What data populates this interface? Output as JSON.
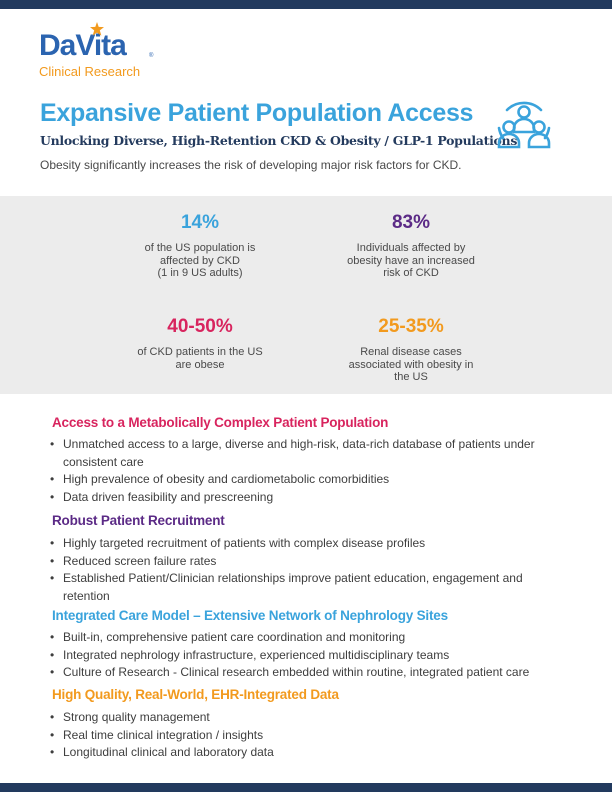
{
  "logo": {
    "brand": "DaVita",
    "reg_mark": "®",
    "subtitle": "Clinical Research"
  },
  "header": {
    "title": "Expansive Patient Population Access",
    "subtitle": "Unlocking Diverse, High-Retention CKD & Obesity / GLP-1 Populations",
    "intro": "Obesity significantly increases the risk of developing major risk factors for CKD."
  },
  "stats": [
    {
      "value": "14%",
      "lines": [
        "of the US population is",
        "affected by CKD",
        "(1 in 9 US adults)"
      ]
    },
    {
      "value": "83%",
      "lines": [
        "Individuals affected by",
        "obesity have an increased",
        "risk of CKD"
      ]
    },
    {
      "value": "40-50%",
      "lines": [
        "of CKD patients in the US",
        "are obese"
      ]
    },
    {
      "value": "25-35%",
      "lines": [
        "Renal disease cases",
        "associated with obesity in",
        "the US"
      ]
    }
  ],
  "sections": [
    {
      "heading": "Access to a Metabolically Complex Patient Population",
      "bullets": [
        [
          "Unmatched access to a large, diverse and high-risk, data-rich database of patients under",
          "consistent care"
        ],
        [
          "High prevalence of obesity and cardiometabolic comorbidities"
        ],
        [
          "Data driven feasibility and prescreening"
        ]
      ]
    },
    {
      "heading": "Robust Patient Recruitment",
      "bullets": [
        [
          "Highly targeted recruitment of patients with complex disease profiles"
        ],
        [
          "Reduced screen failure rates"
        ],
        [
          "Established Patient/Clinician relationships improve patient education, engagement and",
          "retention"
        ]
      ]
    },
    {
      "heading": "Integrated Care Model – Extensive Network of Nephrology Sites",
      "bullets": [
        [
          "Built-in, comprehensive patient care coordination and monitoring"
        ],
        [
          "Integrated nephrology infrastructure, experienced multidisciplinary teams"
        ],
        [
          "Culture of Research - Clinical research embedded within routine, integrated patient care"
        ]
      ]
    },
    {
      "heading": "High Quality, Real-World, EHR-Integrated Data",
      "bullets": [
        [
          "Strong quality management"
        ],
        [
          "Real time clinical integration / insights"
        ],
        [
          "Longitudinal clinical and laboratory data"
        ]
      ]
    }
  ],
  "colors": {
    "title": "#3aa3dc",
    "navy": "#243b5e",
    "magenta": "#d8245e",
    "purple": "#5b2a86",
    "blue": "#3aa3dc",
    "orange": "#f29a1e",
    "panel": "#ececec"
  },
  "icons": {
    "team": "people-group-icon",
    "star": "star-icon"
  }
}
